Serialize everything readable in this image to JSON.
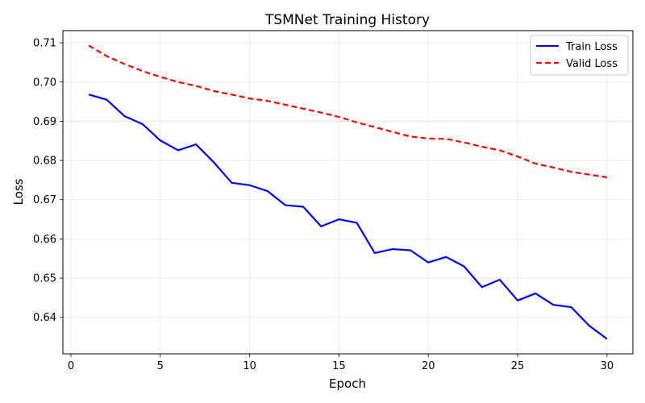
{
  "chart_data": {
    "type": "line",
    "title": "TSMNet Training History",
    "xlabel": "Epoch",
    "ylabel": "Loss",
    "xlim": [
      -0.45,
      31.45
    ],
    "ylim": [
      0.6307,
      0.7131
    ],
    "xticks": [
      0,
      5,
      10,
      15,
      20,
      25,
      30
    ],
    "yticks": [
      0.64,
      0.65,
      0.66,
      0.67,
      0.68,
      0.69,
      0.7,
      0.71
    ],
    "ytick_labels": [
      "0.64",
      "0.65",
      "0.66",
      "0.67",
      "0.68",
      "0.69",
      "0.70",
      "0.71"
    ],
    "grid": true,
    "legend_position": "top-right",
    "x": [
      1,
      2,
      3,
      4,
      5,
      6,
      7,
      8,
      9,
      10,
      11,
      12,
      13,
      14,
      15,
      16,
      17,
      18,
      19,
      20,
      21,
      22,
      23,
      24,
      25,
      26,
      27,
      28,
      29,
      30
    ],
    "series": [
      {
        "name": "Train Loss",
        "color": "#0000ff",
        "style": "solid",
        "values": [
          0.6968,
          0.6955,
          0.6913,
          0.6893,
          0.6851,
          0.6826,
          0.6841,
          0.6795,
          0.6743,
          0.6737,
          0.6722,
          0.6686,
          0.6682,
          0.6632,
          0.665,
          0.6641,
          0.6564,
          0.6574,
          0.6571,
          0.654,
          0.6554,
          0.653,
          0.6477,
          0.6496,
          0.6443,
          0.6461,
          0.6432,
          0.6426,
          0.6379,
          0.6345
        ]
      },
      {
        "name": "Valid Loss",
        "color": "#ff0000",
        "style": "dashed",
        "values": [
          0.7093,
          0.7066,
          0.7046,
          0.7028,
          0.7013,
          0.7,
          0.699,
          0.6977,
          0.6968,
          0.6958,
          0.6952,
          0.6942,
          0.6932,
          0.6922,
          0.6911,
          0.6897,
          0.6885,
          0.6873,
          0.6861,
          0.6856,
          0.6855,
          0.6846,
          0.6835,
          0.6826,
          0.681,
          0.6792,
          0.6782,
          0.6771,
          0.6764,
          0.6757
        ]
      }
    ]
  }
}
